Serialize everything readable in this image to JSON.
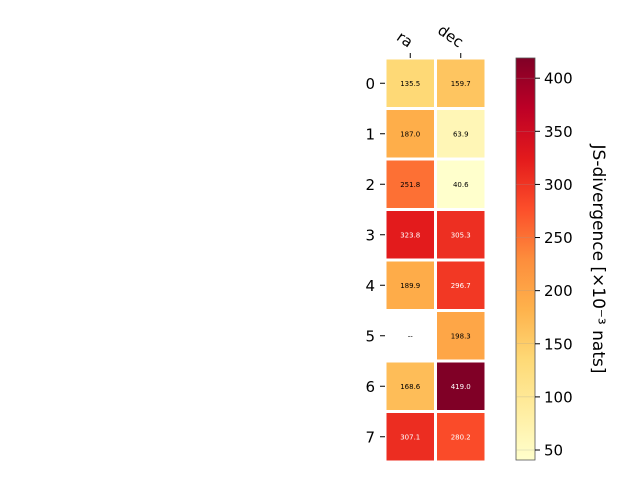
{
  "chart_data": {
    "type": "heatmap",
    "x_categories": [
      "ra",
      "dec"
    ],
    "y_categories": [
      "0",
      "1",
      "2",
      "3",
      "4",
      "5",
      "6",
      "7"
    ],
    "values": [
      [
        135.5,
        159.7
      ],
      [
        187.0,
        63.9
      ],
      [
        251.8,
        40.6
      ],
      [
        323.8,
        305.3
      ],
      [
        189.9,
        296.7
      ],
      [
        null,
        198.3
      ],
      [
        168.6,
        419.0
      ],
      [
        307.1,
        280.2
      ]
    ],
    "cell_labels": [
      [
        "135.5",
        "159.7"
      ],
      [
        "187.0",
        "63.9"
      ],
      [
        "251.8",
        "40.6"
      ],
      [
        "323.8",
        "305.3"
      ],
      [
        "189.9",
        "296.7"
      ],
      [
        "--",
        "198.3"
      ],
      [
        "168.6",
        "419.0"
      ],
      [
        "307.1",
        "280.2"
      ]
    ],
    "colorbar": {
      "label": "JS-divergence [×10⁻³ nats]",
      "range": [
        40.6,
        419.0
      ],
      "ticks": [
        "50",
        "100",
        "150",
        "200",
        "250",
        "300",
        "350",
        "400"
      ],
      "tick_values": [
        50,
        100,
        150,
        200,
        250,
        300,
        350,
        400
      ],
      "colormap": "YlOrRd",
      "colormap_stops": [
        "#ffffcc",
        "#ffeda0",
        "#fed976",
        "#feb24c",
        "#fd8d3c",
        "#fc4e2a",
        "#e31a1c",
        "#bd0026",
        "#800026"
      ]
    },
    "missing_cell_color": "#ffffff",
    "grid": false
  }
}
